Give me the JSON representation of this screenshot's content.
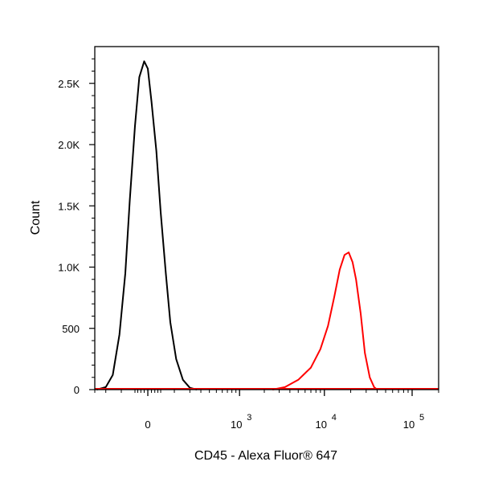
{
  "chart_data": {
    "type": "line",
    "title": "",
    "xlabel": "CD45 - Alexa Fluor® 647",
    "ylabel": "Count",
    "x_scale": "biexponential",
    "xlim": [
      -300,
      200000
    ],
    "ylim": [
      0,
      2800
    ],
    "grid": false,
    "legend": "none",
    "y_ticks": [
      {
        "value": 0,
        "label": "0"
      },
      {
        "value": 500,
        "label": "500"
      },
      {
        "value": 1000,
        "label": "1.0K"
      },
      {
        "value": 1500,
        "label": "1.5K"
      },
      {
        "value": 2000,
        "label": "2.0K"
      },
      {
        "value": 2500,
        "label": "2.5K"
      }
    ],
    "x_ticks": [
      {
        "value": 0,
        "label": "0",
        "exp": ""
      },
      {
        "value": 1000,
        "label": "10",
        "exp": "3"
      },
      {
        "value": 10000,
        "label": "10",
        "exp": "4"
      },
      {
        "value": 100000,
        "label": "10",
        "exp": "5"
      }
    ],
    "series": [
      {
        "color": "#000000",
        "x": [
          -280,
          -200,
          -150,
          -110,
          -80,
          -60,
          -40,
          -25,
          -10,
          0,
          10,
          25,
          40,
          60,
          80,
          110,
          150,
          200,
          260
        ],
        "y": [
          0,
          20,
          120,
          450,
          950,
          1550,
          2150,
          2550,
          2680,
          2620,
          2350,
          1950,
          1450,
          950,
          550,
          250,
          80,
          15,
          0
        ]
      },
      {
        "color": "#ff0000",
        "x": [
          2500,
          3500,
          5000,
          7000,
          9000,
          11000,
          13000,
          15000,
          17000,
          19000,
          21000,
          23000,
          26000,
          29000,
          33000,
          37000,
          40000
        ],
        "y": [
          0,
          20,
          80,
          180,
          330,
          520,
          760,
          980,
          1100,
          1120,
          1040,
          900,
          620,
          300,
          100,
          20,
          0
        ]
      }
    ]
  }
}
